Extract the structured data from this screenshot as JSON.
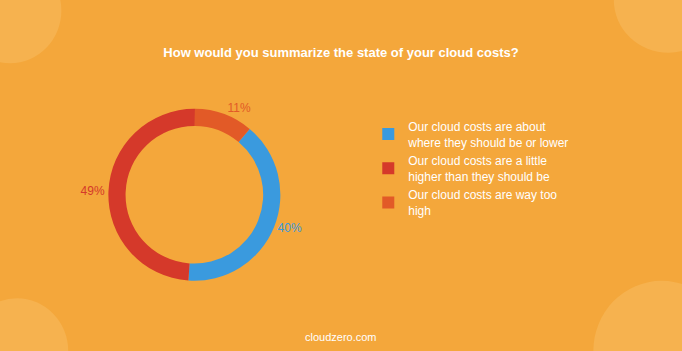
{
  "chart_data": {
    "type": "donut",
    "title": "How would you summarize the state of your cloud costs?",
    "categories": [
      "Our cloud costs are about where they should be or lower",
      "Our cloud costs are a little higher than they should be",
      "Our cloud costs are way too high"
    ],
    "values": [
      40,
      49,
      11
    ],
    "value_labels": [
      "40%",
      "49%",
      "11%"
    ],
    "colors": [
      "#3a9ade",
      "#d5392a",
      "#e25a27"
    ],
    "data_labels": true,
    "legend": "right",
    "annotations": [
      "cloudzero.com"
    ]
  }
}
